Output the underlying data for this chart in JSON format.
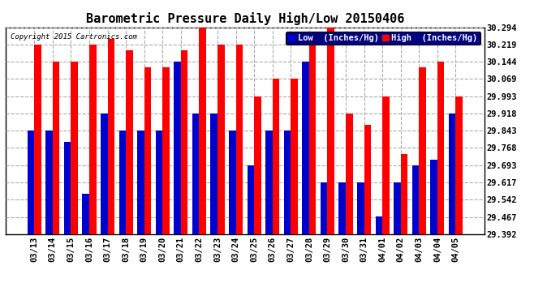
{
  "title": "Barometric Pressure Daily High/Low 20150406",
  "copyright": "Copyright 2015 Cartronics.com",
  "legend_low": "Low  (Inches/Hg)",
  "legend_high": "High  (Inches/Hg)",
  "dates": [
    "03/13",
    "03/14",
    "03/15",
    "03/16",
    "03/17",
    "03/18",
    "03/19",
    "03/20",
    "03/21",
    "03/22",
    "03/23",
    "03/24",
    "03/25",
    "03/26",
    "03/27",
    "03/28",
    "03/29",
    "03/30",
    "03/31",
    "04/01",
    "04/02",
    "04/03",
    "04/04",
    "04/05"
  ],
  "high": [
    30.219,
    30.144,
    30.144,
    30.219,
    30.244,
    30.194,
    30.119,
    30.119,
    30.194,
    30.294,
    30.219,
    30.219,
    29.993,
    30.069,
    30.069,
    30.219,
    30.294,
    29.918,
    29.868,
    29.993,
    29.743,
    30.119,
    30.144,
    29.993
  ],
  "low": [
    29.843,
    29.843,
    29.793,
    29.568,
    29.918,
    29.843,
    29.843,
    29.843,
    30.144,
    29.918,
    29.918,
    29.843,
    29.693,
    29.843,
    29.843,
    30.144,
    29.618,
    29.618,
    29.618,
    29.468,
    29.618,
    29.693,
    29.718,
    29.918
  ],
  "ymin": 29.392,
  "ymax": 30.294,
  "yticks": [
    29.392,
    29.467,
    29.542,
    29.617,
    29.693,
    29.768,
    29.843,
    29.918,
    29.993,
    30.069,
    30.144,
    30.219,
    30.294
  ],
  "bar_width": 0.38,
  "color_low": "#0000cc",
  "color_high": "#ff0000",
  "bg_color": "#ffffff",
  "grid_color": "#aaaaaa",
  "title_fontsize": 11,
  "tick_fontsize": 7.5,
  "legend_fontsize": 7.5
}
